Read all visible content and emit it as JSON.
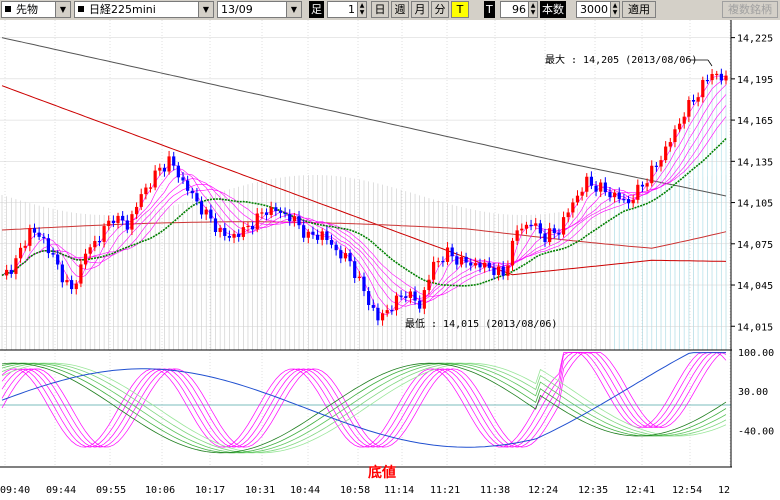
{
  "toolbar": {
    "market": "先物",
    "instrument": "日経225mini",
    "contract": "13/09",
    "foot_label": "足",
    "foot_value": "1",
    "period_day": "日",
    "period_week": "週",
    "period_month": "月",
    "period_minute": "分",
    "tick_button": "T",
    "t_label": "T",
    "t_value": "96",
    "count_label": "本数",
    "count_value": "3000",
    "apply_button": "適用",
    "compare_button": "複数銘柄"
  },
  "colors": {
    "candle_up": "#ff0000",
    "candle_down": "#0000ff",
    "ma_short": "#ff00ff",
    "ma_mid": "#008000",
    "ma_long1": "#cc0000",
    "ma_long2": "#555555",
    "grid": "#000000"
  },
  "chart_data": {
    "type": "candlestick",
    "price_axis": [
      "14,225",
      "14,195",
      "14,165",
      "14,135",
      "14,105",
      "14,075",
      "14,045",
      "14,015"
    ],
    "osc_axis": [
      "100.00",
      "30.00",
      "-40.00"
    ],
    "time_axis": [
      "09:40",
      "09:44",
      "09:55",
      "10:06",
      "10:17",
      "10:31",
      "10:44",
      "10:58",
      "11:14",
      "11:21",
      "11:38",
      "12:24",
      "12:35",
      "12:41",
      "12:54",
      "12"
    ],
    "max_label": "最大 : 14,205 (2013/08/06)",
    "min_label": "最低 : 14,015 (2013/08/06)",
    "bottom_marker": "底値",
    "price_range": [
      14005,
      14232
    ],
    "high": 14205,
    "low": 14015,
    "close_points": [
      [
        0,
        14050
      ],
      [
        3,
        14062
      ],
      [
        6,
        14085
      ],
      [
        9,
        14078
      ],
      [
        12,
        14058
      ],
      [
        15,
        14040
      ],
      [
        18,
        14068
      ],
      [
        21,
        14080
      ],
      [
        24,
        14095
      ],
      [
        27,
        14088
      ],
      [
        30,
        14110
      ],
      [
        33,
        14125
      ],
      [
        36,
        14136
      ],
      [
        39,
        14120
      ],
      [
        42,
        14105
      ],
      [
        45,
        14092
      ],
      [
        48,
        14080
      ],
      [
        51,
        14082
      ],
      [
        54,
        14090
      ],
      [
        57,
        14100
      ],
      [
        60,
        14098
      ],
      [
        63,
        14092
      ],
      [
        66,
        14080
      ],
      [
        69,
        14082
      ],
      [
        72,
        14070
      ],
      [
        75,
        14062
      ],
      [
        78,
        14040
      ],
      [
        81,
        14020
      ],
      [
        84,
        14030
      ],
      [
        87,
        14040
      ],
      [
        90,
        14030
      ],
      [
        93,
        14060
      ],
      [
        96,
        14068
      ],
      [
        99,
        14062
      ],
      [
        102,
        14060
      ],
      [
        105,
        14058
      ],
      [
        108,
        14052
      ],
      [
        111,
        14085
      ],
      [
        114,
        14090
      ],
      [
        117,
        14080
      ],
      [
        120,
        14085
      ],
      [
        123,
        14105
      ],
      [
        126,
        14120
      ],
      [
        129,
        14115
      ],
      [
        132,
        14110
      ],
      [
        135,
        14105
      ],
      [
        138,
        14118
      ],
      [
        141,
        14132
      ],
      [
        144,
        14150
      ],
      [
        147,
        14170
      ],
      [
        150,
        14185
      ],
      [
        153,
        14200
      ],
      [
        155,
        14195
      ]
    ]
  }
}
